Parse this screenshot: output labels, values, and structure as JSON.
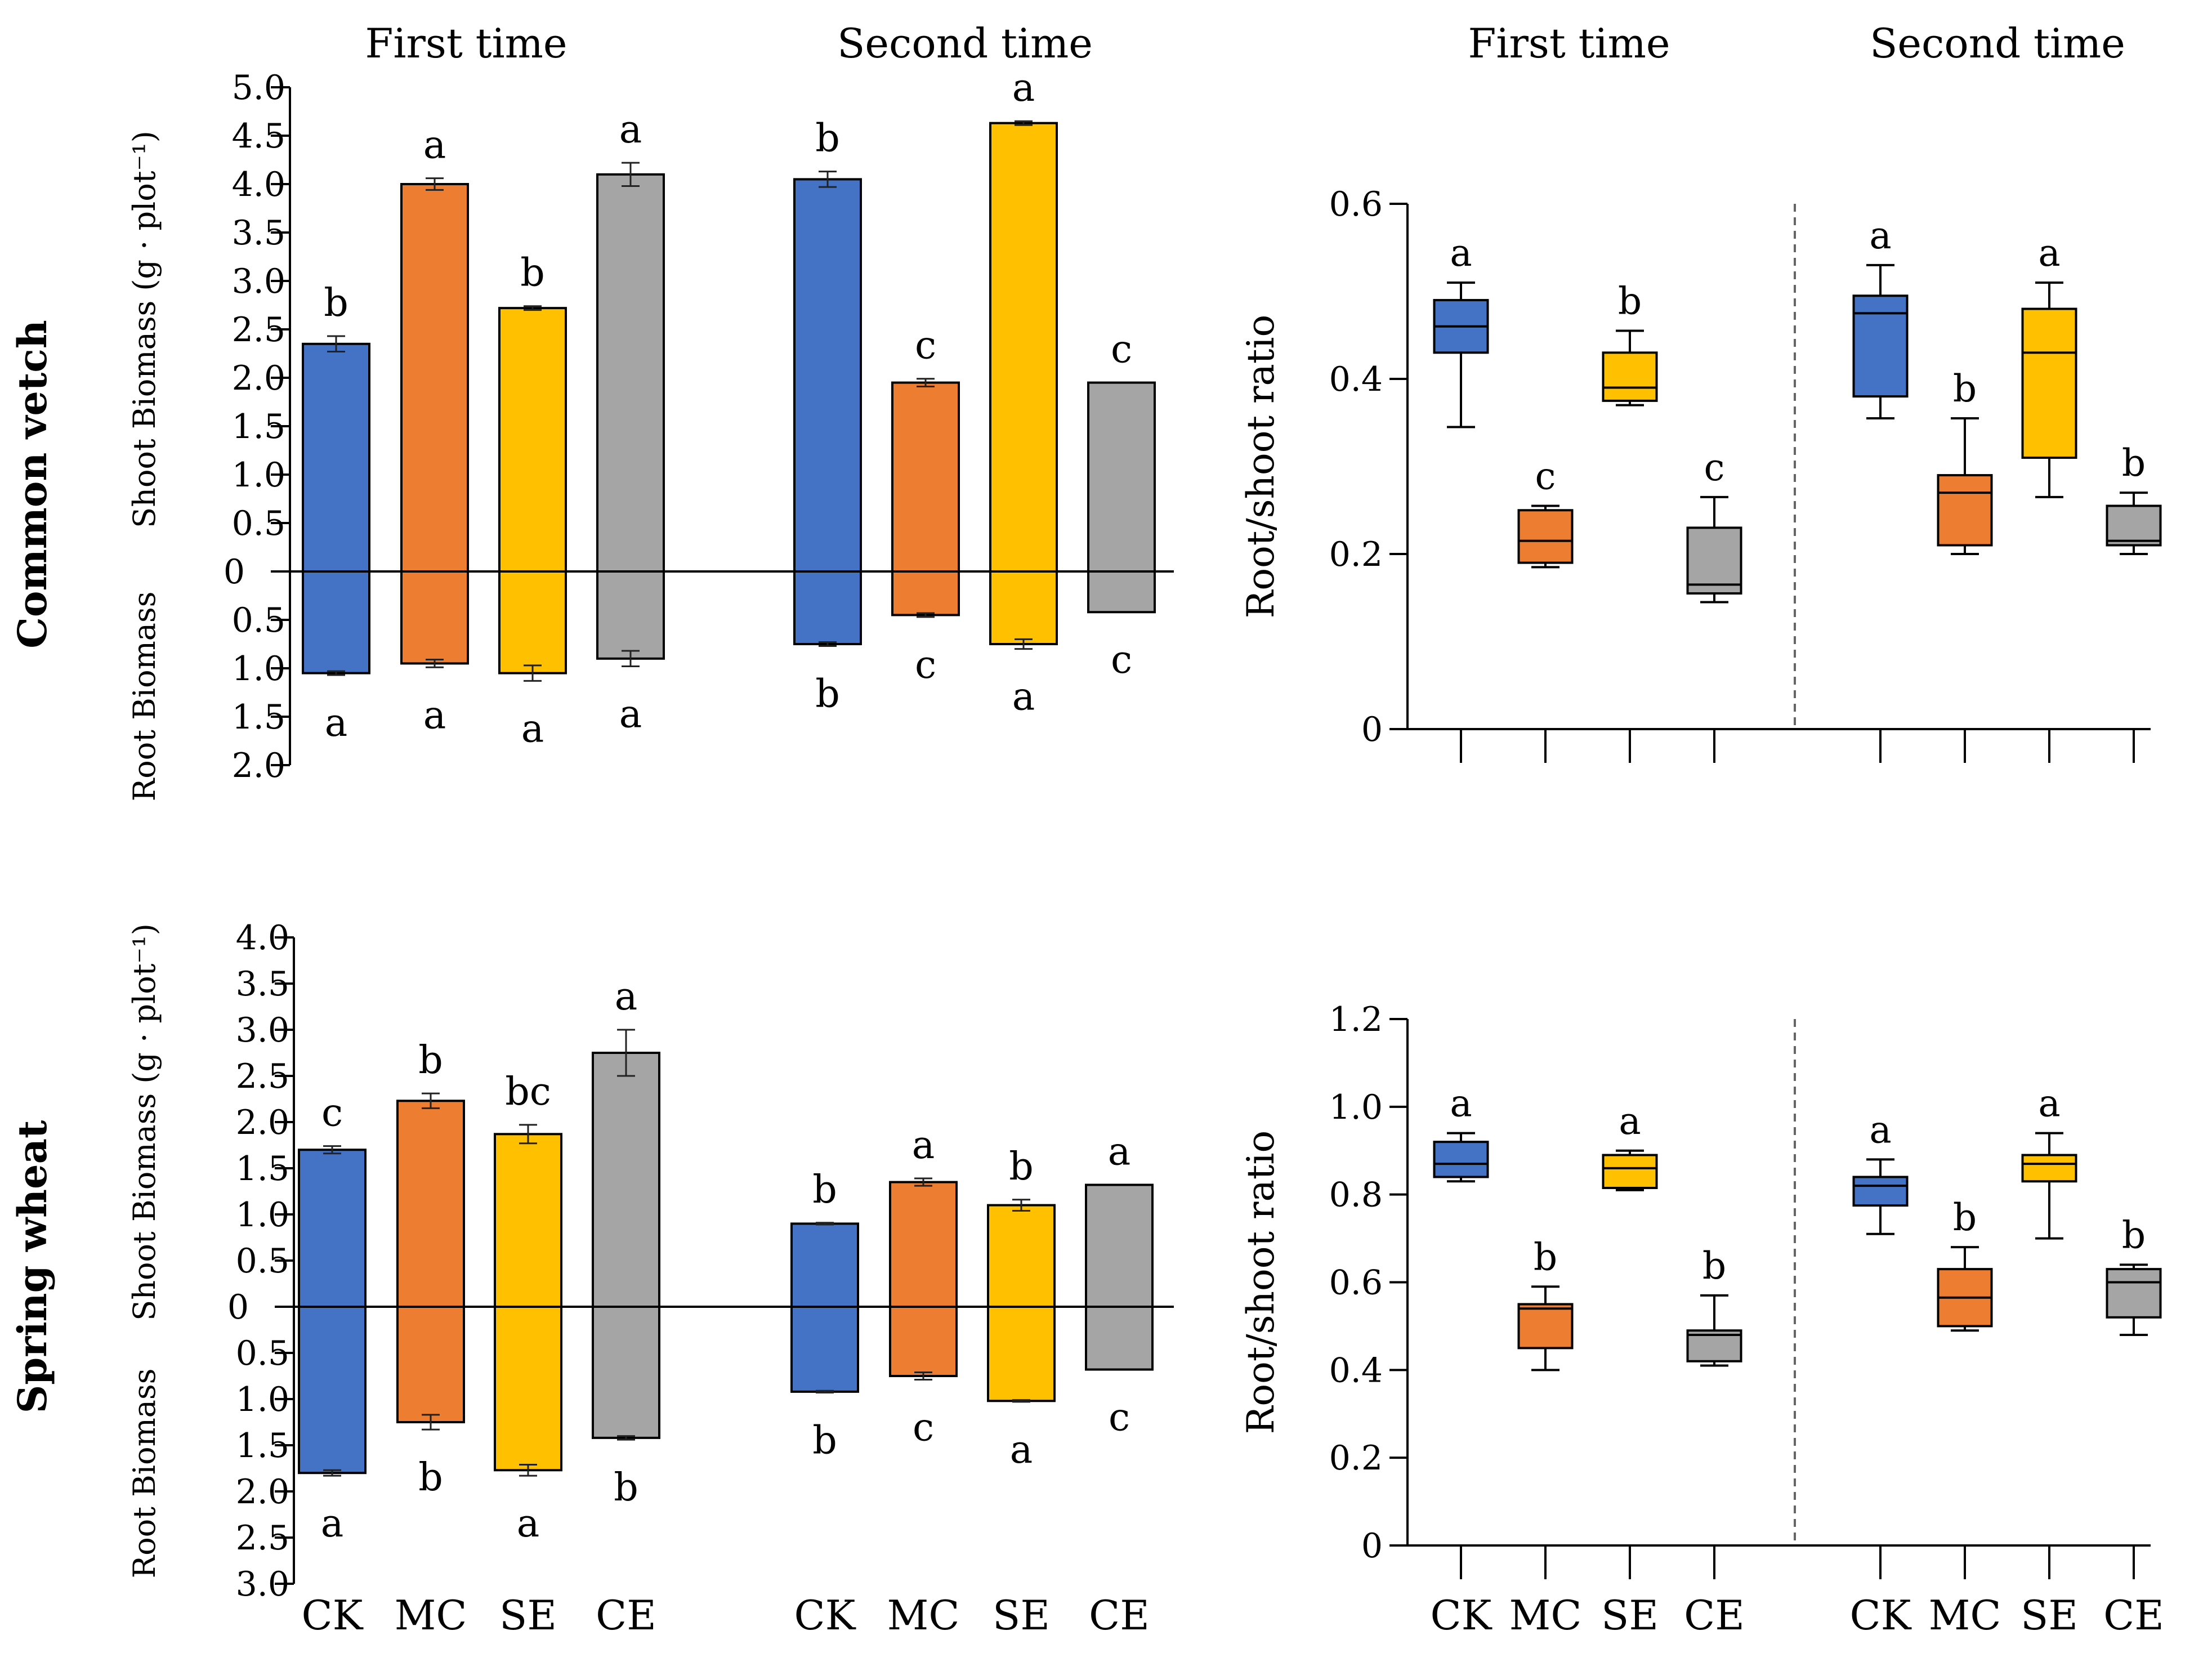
{
  "colors": {
    "CK": "#4472C4",
    "MC": "#ED7D31",
    "SE": "#FFC000",
    "CE": "#A5A5A5",
    "axis": "#000000",
    "divider": "#666666"
  },
  "rows": [
    {
      "id": "vetch",
      "crop_label": "Common vetch",
      "groups": [
        "CK",
        "MC",
        "SE",
        "CE"
      ]
    },
    {
      "id": "wheat",
      "crop_label": "Spring wheat",
      "groups": [
        "CK",
        "MC",
        "SE",
        "CE"
      ]
    }
  ],
  "chart_data": [
    {
      "id": "vetch_biomass",
      "type": "bar",
      "title": "",
      "panel_titles": [
        "First time",
        "Second time"
      ],
      "ylabel_top": "Shoot Biomass (g · plot⁻¹)",
      "ylabel_bottom": "Root Biomass",
      "ylim_shoot": [
        0,
        5.0
      ],
      "ylim_root": [
        0,
        2.0
      ],
      "shoot_ticks": [
        "5.0",
        "4.5",
        "4.0",
        "3.5",
        "3.0",
        "2.5",
        "2.0",
        "1.5",
        "1.0",
        "0.5"
      ],
      "zero_tick": "0",
      "root_ticks": [
        "0.5",
        "1.0",
        "1.5",
        "2.0"
      ],
      "categories": [
        "CK",
        "MC",
        "SE",
        "CE"
      ],
      "show_categories": false,
      "series": [
        {
          "name": "First time",
          "shoot": [
            2.35,
            4.0,
            2.72,
            4.1
          ],
          "shoot_err": [
            0.08,
            0.06,
            0.02,
            0.12
          ],
          "shoot_letters": [
            "b",
            "a",
            "b",
            "a"
          ],
          "root": [
            1.05,
            0.95,
            1.05,
            0.9
          ],
          "root_err": [
            0.02,
            0.04,
            0.08,
            0.08
          ],
          "root_letters": [
            "a",
            "a",
            "a",
            "a"
          ]
        },
        {
          "name": "Second time",
          "shoot": [
            4.05,
            1.95,
            4.63,
            1.95
          ],
          "shoot_err": [
            0.08,
            0.04,
            0.02,
            0.0
          ],
          "shoot_letters": [
            "b",
            "c",
            "a",
            "c"
          ],
          "root": [
            0.75,
            0.45,
            0.75,
            0.42
          ],
          "root_err": [
            0.02,
            0.02,
            0.05,
            0.0
          ],
          "root_letters": [
            "b",
            "c",
            "a",
            "c"
          ]
        }
      ]
    },
    {
      "id": "vetch_ratio",
      "type": "box",
      "title": "",
      "panel_titles": [
        "First time",
        "Second time"
      ],
      "ylabel": "Root/shoot ratio",
      "ylim": [
        0,
        0.6
      ],
      "yticks": [
        "0",
        "0.2",
        "0.4",
        "0.6"
      ],
      "categories": [
        "CK",
        "MC",
        "SE",
        "CE"
      ],
      "show_categories": false,
      "series": [
        {
          "name": "First time",
          "boxes": [
            {
              "min": 0.345,
              "q1": 0.43,
              "median": 0.46,
              "q3": 0.49,
              "max": 0.51
            },
            {
              "min": 0.185,
              "q1": 0.19,
              "median": 0.215,
              "q3": 0.25,
              "max": 0.255
            },
            {
              "min": 0.37,
              "q1": 0.375,
              "median": 0.39,
              "q3": 0.43,
              "max": 0.455
            },
            {
              "min": 0.145,
              "q1": 0.155,
              "median": 0.165,
              "q3": 0.23,
              "max": 0.265
            }
          ],
          "letters": [
            "a",
            "c",
            "b",
            "c"
          ]
        },
        {
          "name": "Second time",
          "boxes": [
            {
              "min": 0.355,
              "q1": 0.38,
              "median": 0.475,
              "q3": 0.495,
              "max": 0.53
            },
            {
              "min": 0.2,
              "q1": 0.21,
              "median": 0.27,
              "q3": 0.29,
              "max": 0.355
            },
            {
              "min": 0.265,
              "q1": 0.31,
              "median": 0.43,
              "q3": 0.48,
              "max": 0.51
            },
            {
              "min": 0.2,
              "q1": 0.21,
              "median": 0.215,
              "q3": 0.255,
              "max": 0.27
            }
          ],
          "letters": [
            "a",
            "b",
            "a",
            "b"
          ]
        }
      ]
    },
    {
      "id": "wheat_biomass",
      "type": "bar",
      "title": "",
      "panel_titles": [],
      "ylabel_top": "Shoot Biomass (g · plot⁻¹)",
      "ylabel_bottom": "Root Biomass",
      "ylim_shoot": [
        0,
        4.0
      ],
      "ylim_root": [
        0,
        3.0
      ],
      "shoot_ticks": [
        "4.0",
        "3.5",
        "3.0",
        "2.5",
        "2.0",
        "1.5",
        "1.0",
        "0.5"
      ],
      "zero_tick": "0",
      "root_ticks": [
        "0.5",
        "1.0",
        "1.5",
        "2.0",
        "2.5",
        "3.0"
      ],
      "categories": [
        "CK",
        "MC",
        "SE",
        "CE"
      ],
      "show_categories": true,
      "series": [
        {
          "name": "First time",
          "shoot": [
            1.7,
            2.23,
            1.87,
            2.75
          ],
          "shoot_err": [
            0.04,
            0.08,
            0.1,
            0.25
          ],
          "shoot_letters": [
            "c",
            "b",
            "bc",
            "a"
          ],
          "root": [
            1.8,
            1.25,
            1.77,
            1.42
          ],
          "root_err": [
            0.03,
            0.08,
            0.06,
            0.02
          ],
          "root_letters": [
            "a",
            "b",
            "a",
            "b"
          ]
        },
        {
          "name": "Second time",
          "shoot": [
            0.9,
            1.35,
            1.1,
            1.32
          ],
          "shoot_err": [
            0.01,
            0.04,
            0.06,
            0.0
          ],
          "shoot_letters": [
            "b",
            "a",
            "b",
            "a"
          ],
          "root": [
            0.92,
            0.75,
            1.02,
            0.68
          ],
          "root_err": [
            0.01,
            0.04,
            0.01,
            0.0
          ],
          "root_letters": [
            "b",
            "c",
            "a",
            "c"
          ]
        }
      ]
    },
    {
      "id": "wheat_ratio",
      "type": "box",
      "title": "",
      "panel_titles": [],
      "ylabel": "Root/shoot ratio",
      "ylim": [
        0,
        1.2
      ],
      "yticks": [
        "0",
        "0.2",
        "0.4",
        "0.6",
        "0.8",
        "1.0",
        "1.2"
      ],
      "categories": [
        "CK",
        "MC",
        "SE",
        "CE"
      ],
      "show_categories": true,
      "series": [
        {
          "name": "First time",
          "boxes": [
            {
              "min": 0.83,
              "q1": 0.84,
              "median": 0.87,
              "q3": 0.92,
              "max": 0.94
            },
            {
              "min": 0.4,
              "q1": 0.45,
              "median": 0.54,
              "q3": 0.55,
              "max": 0.59
            },
            {
              "min": 0.81,
              "q1": 0.815,
              "median": 0.86,
              "q3": 0.89,
              "max": 0.9
            },
            {
              "min": 0.41,
              "q1": 0.42,
              "median": 0.48,
              "q3": 0.49,
              "max": 0.57
            }
          ],
          "letters": [
            "a",
            "b",
            "a",
            "b"
          ]
        },
        {
          "name": "Second time",
          "boxes": [
            {
              "min": 0.71,
              "q1": 0.775,
              "median": 0.82,
              "q3": 0.84,
              "max": 0.88
            },
            {
              "min": 0.49,
              "q1": 0.5,
              "median": 0.565,
              "q3": 0.63,
              "max": 0.68
            },
            {
              "min": 0.7,
              "q1": 0.83,
              "median": 0.87,
              "q3": 0.89,
              "max": 0.94
            },
            {
              "min": 0.48,
              "q1": 0.52,
              "median": 0.6,
              "q3": 0.63,
              "max": 0.64
            }
          ],
          "letters": [
            "a",
            "b",
            "a",
            "b"
          ]
        }
      ]
    }
  ]
}
